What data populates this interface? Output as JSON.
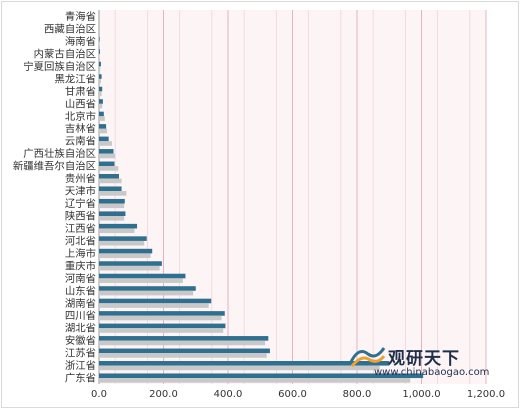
{
  "chart_data": {
    "type": "bar",
    "orientation": "horizontal",
    "categories": [
      "广东省",
      "浙江省",
      "江苏省",
      "安徽省",
      "湖北省",
      "四川省",
      "湖南省",
      "山东省",
      "河南省",
      "重庆市",
      "上海市",
      "河北省",
      "江西省",
      "陕西省",
      "辽宁省",
      "天津市",
      "贵州省",
      "新疆维吾尔自治区",
      "广西壮族自治区",
      "云南省",
      "吉林省",
      "北京市",
      "山西省",
      "甘肃省",
      "黑龙江省",
      "宁夏回族自治区",
      "内蒙古自治区",
      "海南省",
      "西藏自治区",
      "青海省"
    ],
    "series": [
      {
        "values": [
          1005,
          900,
          530,
          525,
          392,
          390,
          348,
          300,
          268,
          195,
          165,
          148,
          118,
          82,
          80,
          70,
          62,
          48,
          45,
          30,
          22,
          15,
          12,
          10,
          8,
          6,
          3,
          2,
          0,
          0
        ],
        "color": "#2f6f8f"
      },
      {
        "values": [
          965,
          870,
          520,
          515,
          385,
          380,
          340,
          292,
          260,
          188,
          160,
          140,
          110,
          78,
          78,
          85,
          70,
          60,
          50,
          40,
          25,
          18,
          10,
          8,
          6,
          4,
          2,
          1,
          0,
          0
        ],
        "color": "#c8c8c8"
      }
    ],
    "xlim": [
      0,
      1200
    ],
    "xticks": [
      "0.0",
      "200.0",
      "400.0",
      "600.0",
      "800.0",
      "1,000.0",
      "1,200.0"
    ],
    "grid": true,
    "plot_background": "#fdf4f6",
    "gridline_color": "#e3b5c3"
  },
  "watermark": {
    "title": "观研天下",
    "url": "www.chinabaogao.com"
  }
}
